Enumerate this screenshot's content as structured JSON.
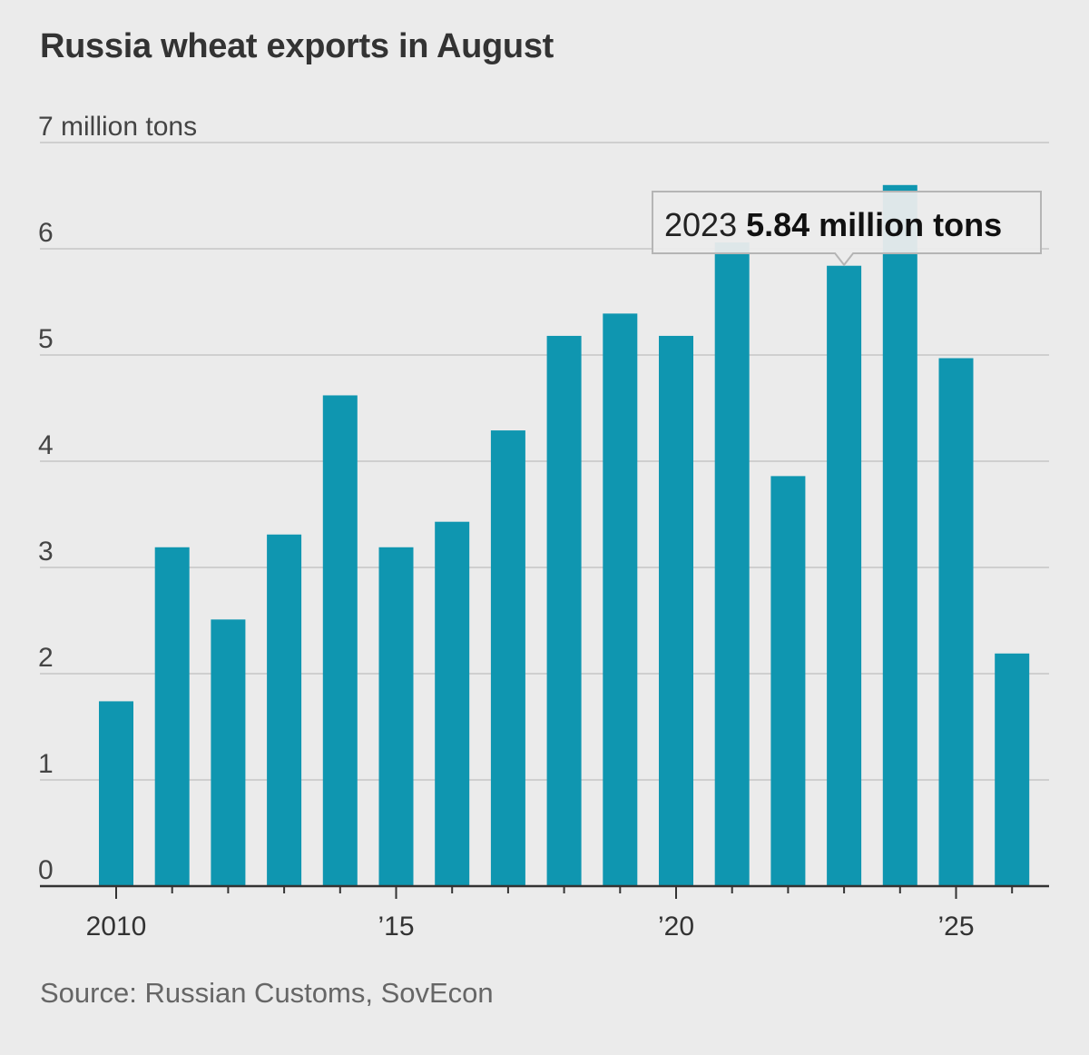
{
  "title": "Russia wheat exports in August",
  "source": "Source: Russian Customs, SovEcon",
  "chart_data": {
    "type": "bar",
    "title": "Russia wheat exports in August",
    "y_unit_label": "7 million tons",
    "ylim": [
      0,
      7
    ],
    "y_ticks": [
      0,
      1,
      2,
      3,
      4,
      5,
      6,
      7
    ],
    "y_tick_labels": [
      "0",
      "1",
      "2",
      "3",
      "4",
      "5",
      "6",
      "7 million tons"
    ],
    "grid": true,
    "bar_color": "#0f96b0",
    "categories": [
      2010,
      2011,
      2012,
      2013,
      2014,
      2015,
      2016,
      2017,
      2018,
      2019,
      2020,
      2021,
      2022,
      2023,
      2024,
      2025,
      2026
    ],
    "values": [
      1.74,
      3.19,
      2.51,
      3.31,
      4.62,
      3.19,
      3.43,
      4.29,
      5.18,
      5.39,
      5.18,
      6.06,
      3.86,
      5.84,
      6.6,
      4.97,
      2.19
    ],
    "x_tick_labels": [
      {
        "year": 2010,
        "label": "2010"
      },
      {
        "year": 2015,
        "label": "’15"
      },
      {
        "year": 2020,
        "label": "’20"
      },
      {
        "year": 2025,
        "label": "’25"
      }
    ],
    "annotation": {
      "year": 2023,
      "year_text": "2023",
      "value_text": "5.84 million tons"
    }
  }
}
